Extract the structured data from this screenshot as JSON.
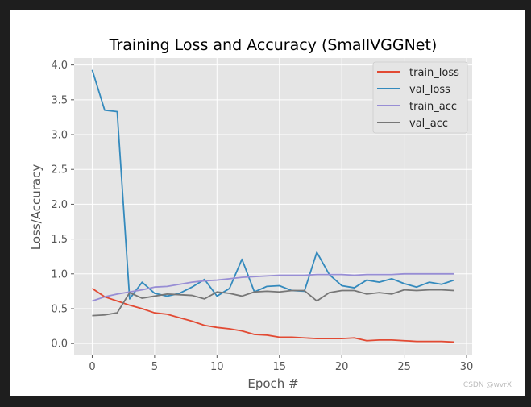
{
  "chart_data": {
    "type": "line",
    "title": "Training Loss and Accuracy (SmallVGGNet)",
    "xlabel": "Epoch #",
    "ylabel": "Loss/Accuracy",
    "xlim": [
      -1.45,
      30.45
    ],
    "ylim": [
      -0.16,
      4.1
    ],
    "xticks": [
      0,
      5,
      10,
      15,
      20,
      25,
      30
    ],
    "xtick_labels": [
      "0",
      "5",
      "10",
      "15",
      "20",
      "25",
      "30"
    ],
    "yticks": [
      0.0,
      0.5,
      1.0,
      1.5,
      2.0,
      2.5,
      3.0,
      3.5,
      4.0
    ],
    "ytick_labels": [
      "0.0",
      "0.5",
      "1.0",
      "1.5",
      "2.0",
      "2.5",
      "3.0",
      "3.5",
      "4.0"
    ],
    "grid": true,
    "legend_position": "top-right",
    "x": [
      0,
      1,
      2,
      3,
      4,
      5,
      6,
      7,
      8,
      9,
      10,
      11,
      12,
      13,
      14,
      15,
      16,
      17,
      18,
      19,
      20,
      21,
      22,
      23,
      24,
      25,
      26,
      27,
      28,
      29
    ],
    "series": [
      {
        "name": "train_loss",
        "color": "#e24a33",
        "values": [
          0.79,
          0.67,
          0.61,
          0.55,
          0.5,
          0.44,
          0.42,
          0.37,
          0.32,
          0.26,
          0.23,
          0.21,
          0.18,
          0.13,
          0.12,
          0.09,
          0.09,
          0.08,
          0.07,
          0.07,
          0.07,
          0.08,
          0.04,
          0.05,
          0.05,
          0.04,
          0.03,
          0.03,
          0.03,
          0.02
        ]
      },
      {
        "name": "val_loss",
        "color": "#348abd",
        "values": [
          3.93,
          3.35,
          3.33,
          0.64,
          0.88,
          0.72,
          0.68,
          0.72,
          0.81,
          0.92,
          0.68,
          0.79,
          1.21,
          0.74,
          0.82,
          0.83,
          0.76,
          0.75,
          1.31,
          0.99,
          0.83,
          0.8,
          0.91,
          0.88,
          0.93,
          0.86,
          0.81,
          0.88,
          0.85,
          0.91
        ]
      },
      {
        "name": "train_acc",
        "color": "#988ed5",
        "values": [
          0.61,
          0.67,
          0.71,
          0.74,
          0.77,
          0.81,
          0.82,
          0.85,
          0.88,
          0.9,
          0.91,
          0.93,
          0.95,
          0.96,
          0.97,
          0.98,
          0.98,
          0.98,
          0.99,
          0.99,
          0.99,
          0.98,
          0.99,
          0.99,
          0.99,
          1.0,
          1.0,
          1.0,
          1.0,
          1.0
        ]
      },
      {
        "name": "val_acc",
        "color": "#777777",
        "values": [
          0.4,
          0.41,
          0.44,
          0.73,
          0.65,
          0.68,
          0.71,
          0.7,
          0.69,
          0.64,
          0.74,
          0.72,
          0.68,
          0.74,
          0.75,
          0.74,
          0.76,
          0.76,
          0.61,
          0.73,
          0.76,
          0.76,
          0.71,
          0.73,
          0.71,
          0.77,
          0.76,
          0.77,
          0.77,
          0.76
        ]
      }
    ]
  },
  "watermark": "CSDN @wvrX"
}
